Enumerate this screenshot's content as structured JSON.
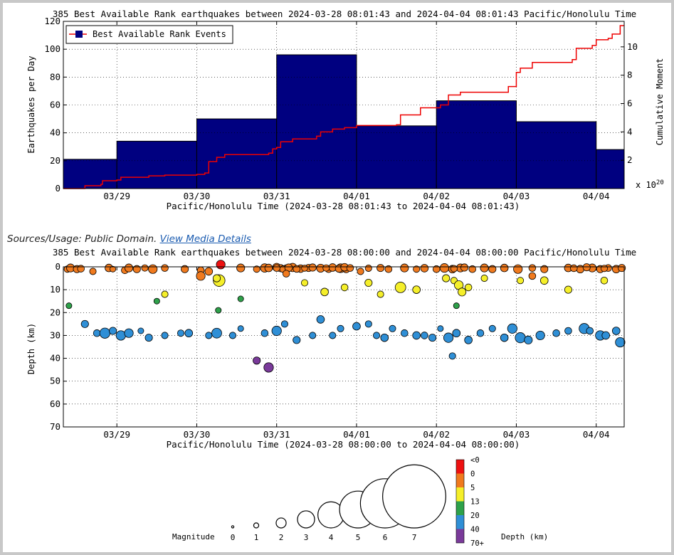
{
  "chart_data": [
    {
      "type": "bar",
      "title": "385 Best Available Rank earthquakes between 2024-03-28 08:01:43 and 2024-04-04 08:01:43 Pacific/Honolulu Time",
      "xlabel": "Pacific/Honolulu Time (2024-03-28 08:01:43 to 2024-04-04 08:01:43)",
      "ylabel": "Earthquakes per Day",
      "y2label": "Cumulative Moment",
      "y2_multiplier": "x 10^20",
      "x_start_day": 28.33,
      "x_end_day": 35.35,
      "xlim_days": [
        28.33,
        35.35
      ],
      "ylim": [
        0,
        120
      ],
      "yticks": [
        0,
        20,
        40,
        60,
        80,
        100,
        120
      ],
      "y2lim": [
        0,
        11.8
      ],
      "y2ticks": [
        2,
        4,
        6,
        8,
        10
      ],
      "xticks": [
        {
          "day": 29,
          "label": "03/29"
        },
        {
          "day": 30,
          "label": "03/30"
        },
        {
          "day": 31,
          "label": "03/31"
        },
        {
          "day": 32,
          "label": "04/01"
        },
        {
          "day": 33,
          "label": "04/02"
        },
        {
          "day": 34,
          "label": "04/03"
        },
        {
          "day": 35,
          "label": "04/04"
        }
      ],
      "legend": {
        "label": "Best Available Rank Events",
        "position": "top-left"
      },
      "bars": [
        {
          "start": 28.33,
          "end": 29.0,
          "value": 21
        },
        {
          "start": 29.0,
          "end": 30.0,
          "value": 34
        },
        {
          "start": 30.0,
          "end": 31.0,
          "value": 50
        },
        {
          "start": 31.0,
          "end": 32.0,
          "value": 96
        },
        {
          "start": 32.0,
          "end": 33.0,
          "value": 45
        },
        {
          "start": 33.0,
          "end": 34.0,
          "value": 63
        },
        {
          "start": 34.0,
          "end": 35.0,
          "value": 48
        },
        {
          "start": 35.0,
          "end": 35.35,
          "value": 28
        }
      ],
      "cumulative_moment": [
        [
          28.33,
          0.0
        ],
        [
          28.6,
          0.2
        ],
        [
          28.8,
          0.3
        ],
        [
          28.82,
          0.55
        ],
        [
          29.0,
          0.6
        ],
        [
          29.05,
          0.8
        ],
        [
          29.4,
          0.9
        ],
        [
          29.6,
          0.95
        ],
        [
          30.0,
          1.0
        ],
        [
          30.1,
          1.1
        ],
        [
          30.15,
          1.9
        ],
        [
          30.25,
          2.2
        ],
        [
          30.35,
          2.4
        ],
        [
          30.9,
          2.5
        ],
        [
          30.95,
          2.8
        ],
        [
          31.0,
          2.9
        ],
        [
          31.05,
          3.3
        ],
        [
          31.2,
          3.5
        ],
        [
          31.5,
          3.7
        ],
        [
          31.55,
          4.0
        ],
        [
          31.7,
          4.2
        ],
        [
          31.85,
          4.3
        ],
        [
          32.0,
          4.45
        ],
        [
          32.5,
          4.5
        ],
        [
          32.55,
          5.2
        ],
        [
          32.8,
          5.7
        ],
        [
          33.05,
          5.9
        ],
        [
          33.15,
          6.6
        ],
        [
          33.3,
          6.8
        ],
        [
          33.9,
          7.2
        ],
        [
          34.0,
          8.2
        ],
        [
          34.05,
          8.5
        ],
        [
          34.2,
          8.9
        ],
        [
          34.7,
          9.1
        ],
        [
          34.75,
          9.9
        ],
        [
          34.95,
          10.1
        ],
        [
          35.0,
          10.5
        ],
        [
          35.15,
          10.6
        ],
        [
          35.2,
          10.9
        ],
        [
          35.3,
          11.5
        ],
        [
          35.35,
          11.5
        ]
      ]
    },
    {
      "type": "scatter",
      "title": "385 Best Available Rank earthquakes between 2024-03-28 08:00:00 and 2024-04-04 08:00:00 Pacific/Honolulu Time",
      "xlabel": "Pacific/Honolulu Time (2024-03-28 08:00:00 to 2024-04-04 08:00:00)",
      "ylabel": "Depth (km)",
      "xlim_days": [
        28.33,
        35.35
      ],
      "ylim": [
        0,
        70
      ],
      "yticks": [
        0,
        10,
        20,
        30,
        40,
        50,
        60,
        70
      ],
      "xticks": [
        {
          "day": 29,
          "label": "03/29"
        },
        {
          "day": 30,
          "label": "03/30"
        },
        {
          "day": 31,
          "label": "03/31"
        },
        {
          "day": 32,
          "label": "04/01"
        },
        {
          "day": 33,
          "label": "04/02"
        },
        {
          "day": 34,
          "label": "04/03"
        },
        {
          "day": 35,
          "label": "04/04"
        }
      ],
      "depth_colors": [
        {
          "label": "<0",
          "color": "#ee1111"
        },
        {
          "label": "0",
          "color": "#f07a1e"
        },
        {
          "label": "5",
          "color": "#f5ef2a"
        },
        {
          "label": "13",
          "color": "#2ea14a"
        },
        {
          "label": "20",
          "color": "#2f8fd6"
        },
        {
          "label": "40",
          "color": "#7a3a9a"
        },
        {
          "label": "70+",
          "color": ""
        }
      ],
      "depth_legend_title": "Depth (km)",
      "magnitude_legend": {
        "title": "Magnitude",
        "values": [
          "0",
          "1",
          "2",
          "3",
          "4",
          "5",
          "6",
          "7"
        ]
      },
      "points": [
        [
          28.38,
          1,
          1.2
        ],
        [
          28.42,
          0.5,
          1.6
        ],
        [
          28.5,
          1,
          1.4
        ],
        [
          28.55,
          0.8,
          1.3
        ],
        [
          28.7,
          2,
          1.2
        ],
        [
          28.9,
          0.5,
          1.5
        ],
        [
          28.95,
          1,
          1.0
        ],
        [
          29.1,
          1.5,
          1.3
        ],
        [
          29.15,
          0.5,
          1.6
        ],
        [
          29.25,
          1,
          1.4
        ],
        [
          29.35,
          0.5,
          1.2
        ],
        [
          29.45,
          1,
          1.8
        ],
        [
          29.6,
          0.5,
          1.3
        ],
        [
          29.85,
          1,
          1.4
        ],
        [
          30.05,
          1.5,
          1.3
        ],
        [
          30.15,
          2,
          1.5
        ],
        [
          30.3,
          -1,
          1.8
        ],
        [
          30.55,
          0.5,
          1.6
        ],
        [
          30.75,
          1,
          1.2
        ],
        [
          30.85,
          0.5,
          1.7
        ],
        [
          30.9,
          0.5,
          1.5
        ],
        [
          31.0,
          0.2,
          1.6
        ],
        [
          31.05,
          0.6,
          1.4
        ],
        [
          31.12,
          0.5,
          1.2
        ],
        [
          31.2,
          0.3,
          1.7
        ],
        [
          31.3,
          0.8,
          1.5
        ],
        [
          31.4,
          0.5,
          1.4
        ],
        [
          31.55,
          0.6,
          1.6
        ],
        [
          31.65,
          1,
          1.3
        ],
        [
          31.7,
          0.3,
          1.5
        ],
        [
          31.8,
          0.6,
          1.8
        ],
        [
          31.87,
          1,
          1.4
        ],
        [
          32.05,
          2,
          1.2
        ],
        [
          32.3,
          0.5,
          1.4
        ],
        [
          32.4,
          1,
          1.3
        ],
        [
          32.6,
          0.5,
          1.6
        ],
        [
          32.75,
          1,
          1.2
        ],
        [
          32.85,
          0.6,
          1.5
        ],
        [
          33.0,
          1,
          1.3
        ],
        [
          33.1,
          0.5,
          1.8
        ],
        [
          33.2,
          1,
          1.5
        ],
        [
          33.3,
          0.5,
          1.6
        ],
        [
          33.45,
          1,
          1.3
        ],
        [
          33.6,
          0.5,
          1.6
        ],
        [
          33.7,
          1,
          1.4
        ],
        [
          33.85,
          0.5,
          1.5
        ],
        [
          34.02,
          1,
          1.8
        ],
        [
          34.2,
          0.5,
          1.3
        ],
        [
          34.35,
          1,
          1.4
        ],
        [
          34.65,
          0.5,
          1.5
        ],
        [
          34.8,
          1,
          1.5
        ],
        [
          34.95,
          0.5,
          1.6
        ],
        [
          35.05,
          1,
          1.4
        ],
        [
          35.15,
          0.5,
          1.3
        ],
        [
          35.25,
          1,
          1.5
        ],
        [
          35.32,
          0.5,
          1.4
        ],
        [
          31.0,
          0.5,
          1.3
        ],
        [
          31.08,
          1.0,
          1.2
        ],
        [
          31.15,
          0.4,
          1.5
        ],
        [
          31.25,
          0.9,
          1.3
        ],
        [
          31.35,
          0.6,
          1.1
        ],
        [
          31.45,
          0.3,
          1.4
        ],
        [
          31.62,
          0.5,
          1.2
        ],
        [
          31.78,
          0.8,
          1.4
        ],
        [
          31.85,
          0.2,
          1.5
        ],
        [
          31.92,
          0.5,
          1.3
        ],
        [
          32.15,
          0.6,
          1.2
        ],
        [
          33.22,
          0.8,
          1.2
        ],
        [
          33.35,
          0.3,
          1.4
        ],
        [
          34.72,
          0.6,
          1.3
        ],
        [
          34.88,
          0.2,
          1.4
        ],
        [
          35.1,
          0.7,
          1.2
        ],
        [
          30.28,
          6,
          2.6
        ],
        [
          30.05,
          4,
          1.8
        ],
        [
          31.12,
          3,
          1.3
        ],
        [
          29.6,
          12,
          1.2
        ],
        [
          30.25,
          5,
          1.4
        ],
        [
          31.35,
          7,
          1.2
        ],
        [
          31.85,
          9,
          1.3
        ],
        [
          31.6,
          11,
          1.5
        ],
        [
          32.15,
          7,
          1.4
        ],
        [
          32.3,
          12,
          1.2
        ],
        [
          32.55,
          9,
          2.3
        ],
        [
          32.75,
          10,
          1.5
        ],
        [
          33.12,
          5,
          1.4
        ],
        [
          33.22,
          6,
          1.2
        ],
        [
          33.28,
          8,
          1.8
        ],
        [
          33.32,
          11,
          1.6
        ],
        [
          33.4,
          9,
          1.3
        ],
        [
          33.6,
          5,
          1.2
        ],
        [
          34.05,
          6,
          1.2
        ],
        [
          34.2,
          4,
          1.3
        ],
        [
          34.35,
          6,
          1.5
        ],
        [
          34.65,
          10,
          1.4
        ],
        [
          35.1,
          6,
          1.3
        ],
        [
          29.5,
          15,
          1.0
        ],
        [
          30.27,
          19,
          1.0
        ],
        [
          30.55,
          14,
          1.0
        ],
        [
          33.25,
          17,
          1.0
        ],
        [
          28.4,
          17,
          1.0
        ],
        [
          28.6,
          25,
          1.4
        ],
        [
          28.75,
          29,
          1.3
        ],
        [
          28.85,
          29,
          2.2
        ],
        [
          28.95,
          28,
          1.4
        ],
        [
          29.05,
          30,
          2.0
        ],
        [
          29.15,
          29,
          1.8
        ],
        [
          29.3,
          28,
          1.0
        ],
        [
          29.4,
          31,
          1.4
        ],
        [
          29.6,
          30,
          1.2
        ],
        [
          29.8,
          29,
          1.2
        ],
        [
          29.9,
          29,
          1.5
        ],
        [
          30.15,
          30,
          1.2
        ],
        [
          30.25,
          29,
          2.1
        ],
        [
          30.45,
          30,
          1.2
        ],
        [
          30.55,
          27,
          1.0
        ],
        [
          30.85,
          29,
          1.3
        ],
        [
          31.0,
          28,
          2.0
        ],
        [
          31.1,
          25,
          1.2
        ],
        [
          31.25,
          32,
          1.4
        ],
        [
          31.45,
          30,
          1.2
        ],
        [
          31.55,
          23,
          1.5
        ],
        [
          31.7,
          30,
          1.2
        ],
        [
          31.8,
          27,
          1.2
        ],
        [
          32.0,
          26,
          1.5
        ],
        [
          32.15,
          25,
          1.2
        ],
        [
          32.25,
          30,
          1.2
        ],
        [
          32.35,
          31,
          1.5
        ],
        [
          32.45,
          27,
          1.2
        ],
        [
          32.6,
          29,
          1.3
        ],
        [
          32.75,
          30,
          1.5
        ],
        [
          32.85,
          30,
          1.3
        ],
        [
          32.95,
          31,
          1.4
        ],
        [
          33.05,
          27,
          1.0
        ],
        [
          33.15,
          31,
          2.0
        ],
        [
          33.25,
          29,
          1.5
        ],
        [
          33.4,
          32,
          1.5
        ],
        [
          33.55,
          29,
          1.3
        ],
        [
          33.7,
          27,
          1.2
        ],
        [
          33.85,
          31,
          1.5
        ],
        [
          33.95,
          27,
          2.0
        ],
        [
          34.05,
          31,
          2.2
        ],
        [
          34.15,
          32,
          1.6
        ],
        [
          34.3,
          30,
          1.8
        ],
        [
          34.5,
          29,
          1.3
        ],
        [
          34.65,
          28,
          1.3
        ],
        [
          34.85,
          27,
          2.2
        ],
        [
          34.92,
          28,
          1.3
        ],
        [
          35.05,
          30,
          2.0
        ],
        [
          35.12,
          30,
          1.5
        ],
        [
          35.25,
          28,
          1.5
        ],
        [
          35.3,
          33,
          2.0
        ],
        [
          33.2,
          39,
          1.2
        ],
        [
          30.75,
          41,
          1.4
        ],
        [
          30.9,
          44,
          2.0
        ]
      ]
    }
  ],
  "sources": {
    "label": "Sources/Usage: Public Domain.",
    "link": "View Media Details"
  }
}
